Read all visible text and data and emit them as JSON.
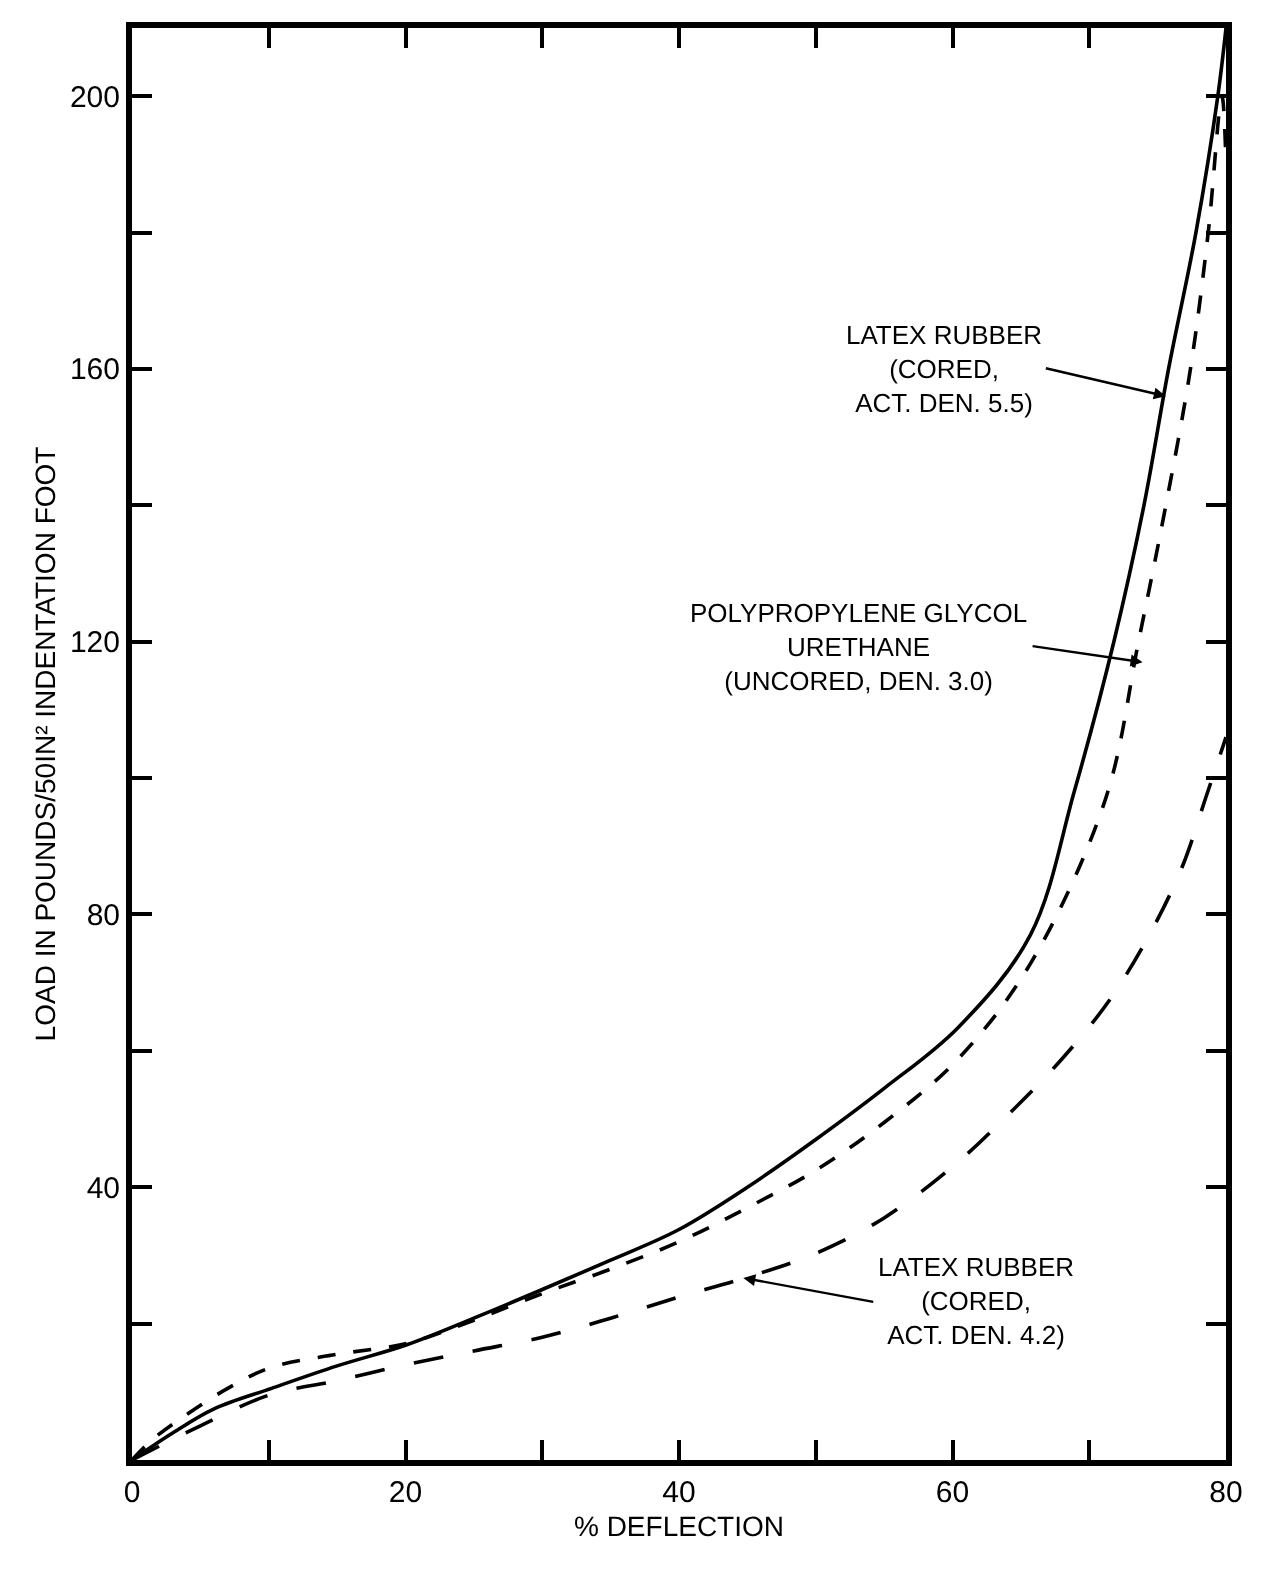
{
  "chart_data": {
    "type": "line",
    "xlabel": "% DEFLECTION",
    "ylabel": "LOAD IN POUNDS/50IN² INDENTATION FOOT",
    "xlim": [
      0,
      80
    ],
    "ylim": [
      0,
      210
    ],
    "xticks": [
      0,
      {
        "value": 10,
        "label": null
      },
      20,
      {
        "value": 30,
        "label": null
      },
      40,
      {
        "value": 50,
        "label": null
      },
      60,
      {
        "value": 70,
        "label": null
      },
      80
    ],
    "yticks": [
      {
        "value": 20,
        "label": null
      },
      40,
      {
        "value": 60,
        "label": null
      },
      80,
      {
        "value": 100,
        "label": null
      },
      120,
      {
        "value": 140,
        "label": null
      },
      160,
      {
        "value": 180,
        "label": null
      },
      200
    ],
    "marker": "none",
    "series": [
      {
        "color": "#000000",
        "line_style": "solid",
        "x": [
          0,
          3,
          6,
          10.2,
          15,
          20.1,
          25,
          30,
          35,
          40,
          45,
          50,
          55,
          60.4,
          65.7,
          68.9,
          71.8,
          74,
          75.8,
          77.8,
          79.4,
          80
        ],
        "values": [
          0,
          4,
          7.5,
          10.5,
          13.8,
          16.9,
          20.8,
          25,
          29.3,
          33.8,
          40,
          47,
          54.5,
          63.4,
          77,
          98,
          120,
          140,
          160,
          180,
          200,
          210
        ]
      },
      {
        "color": "#000000",
        "line_style": "dotted",
        "x": [
          0,
          1.5,
          3.8,
          7,
          10.2,
          15,
          20.1,
          25,
          30,
          35,
          40,
          45,
          50,
          55,
          60.4,
          65.7,
          71.2,
          73.6,
          75.6,
          77.4,
          78.7,
          79.7,
          80
        ],
        "values": [
          0,
          3,
          6.4,
          10.5,
          13.6,
          15.5,
          17.1,
          20.5,
          24.4,
          28,
          32,
          37,
          42.5,
          49.5,
          58.8,
          72.8,
          97,
          120,
          140,
          160,
          180,
          200,
          190
        ]
      },
      {
        "color": "#000000",
        "line_style": "dashed",
        "x": [
          0,
          5,
          10,
          14.9,
          20.1,
          25,
          30,
          35,
          40,
          45,
          50,
          55,
          60.4,
          64,
          68,
          71.5,
          74.5,
          76.8,
          78.5,
          80
        ],
        "values": [
          0,
          5,
          9.5,
          11.6,
          14,
          16,
          18,
          20.8,
          23.9,
          26.8,
          30.3,
          35.5,
          43.7,
          50.5,
          58.8,
          67.5,
          77.4,
          87,
          97,
          106
        ]
      }
    ],
    "annotations": [
      {
        "text": "LATEX RUBBER\n(CORED,\nACT. DEN. 5.5)",
        "x": 75.6,
        "y": 156
      },
      {
        "text": "POLYPROPYLENE GLYCOL\nURETHANE\n(UNCORED, DEN. 3.0)",
        "x": 73.9,
        "y": 117
      },
      {
        "text": "LATEX RUBBER\n(CORED,\nACT. DEN. 4.2)",
        "x": 44.7,
        "y": 26.7
      }
    ]
  }
}
